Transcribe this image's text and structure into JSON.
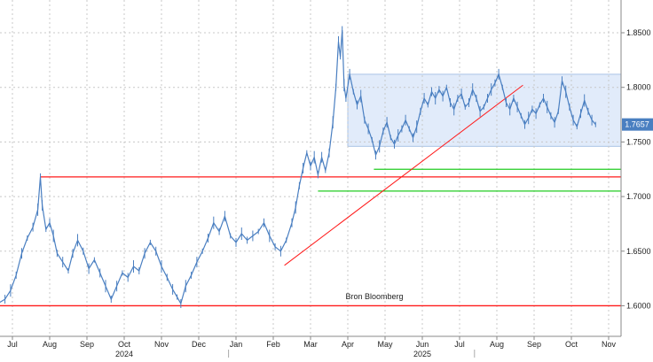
{
  "chart_data": {
    "type": "line",
    "source_label": "Bron Bloomberg",
    "last_value_label": "1.7657",
    "y_ticks": [
      {
        "value": 1.6,
        "label": "1.6000"
      },
      {
        "value": 1.65,
        "label": "1.6500"
      },
      {
        "value": 1.7,
        "label": "1.7000"
      },
      {
        "value": 1.75,
        "label": "1.7500"
      },
      {
        "value": 1.8,
        "label": "1.8000"
      },
      {
        "value": 1.85,
        "label": "1.8500"
      }
    ],
    "ylim": [
      1.572,
      1.88
    ],
    "x_ticks": [
      {
        "month": 0,
        "label": "Jul"
      },
      {
        "month": 1,
        "label": "Aug"
      },
      {
        "month": 2,
        "label": "Sep"
      },
      {
        "month": 3,
        "label": "Oct"
      },
      {
        "month": 4,
        "label": "Nov"
      },
      {
        "month": 5,
        "label": "Dec"
      },
      {
        "month": 6,
        "label": "Jan"
      },
      {
        "month": 7,
        "label": "Feb"
      },
      {
        "month": 8,
        "label": "Mar"
      },
      {
        "month": 9,
        "label": "Apr"
      },
      {
        "month": 10,
        "label": "May"
      },
      {
        "month": 11,
        "label": "Jun"
      },
      {
        "month": 12,
        "label": "Jul"
      },
      {
        "month": 13,
        "label": "Aug"
      },
      {
        "month": 14,
        "label": "Sep"
      },
      {
        "month": 15,
        "label": "Oct"
      },
      {
        "month": 16,
        "label": "Nov"
      }
    ],
    "year_labels": [
      {
        "month": 3,
        "label": "2024"
      },
      {
        "month": 11,
        "label": "2025"
      }
    ],
    "series": [
      {
        "color": "#4a7fc1",
        "points": [
          [
            -0.35,
            1.603
          ],
          [
            -0.2,
            1.606
          ],
          [
            -0.05,
            1.614
          ],
          [
            0.1,
            1.628
          ],
          [
            0.25,
            1.648
          ],
          [
            0.4,
            1.662
          ],
          [
            0.55,
            1.672
          ],
          [
            0.68,
            1.688
          ],
          [
            0.75,
            1.718
          ],
          [
            0.8,
            1.692
          ],
          [
            0.9,
            1.67
          ],
          [
            1.0,
            1.676
          ],
          [
            1.1,
            1.664
          ],
          [
            1.2,
            1.648
          ],
          [
            1.35,
            1.64
          ],
          [
            1.5,
            1.632
          ],
          [
            1.62,
            1.648
          ],
          [
            1.75,
            1.66
          ],
          [
            1.9,
            1.65
          ],
          [
            2.05,
            1.634
          ],
          [
            2.2,
            1.642
          ],
          [
            2.35,
            1.63
          ],
          [
            2.5,
            1.618
          ],
          [
            2.65,
            1.606
          ],
          [
            2.8,
            1.618
          ],
          [
            2.95,
            1.63
          ],
          [
            3.1,
            1.626
          ],
          [
            3.25,
            1.636
          ],
          [
            3.4,
            1.632
          ],
          [
            3.55,
            1.648
          ],
          [
            3.7,
            1.658
          ],
          [
            3.85,
            1.65
          ],
          [
            4.0,
            1.636
          ],
          [
            4.15,
            1.626
          ],
          [
            4.3,
            1.615
          ],
          [
            4.42,
            1.608
          ],
          [
            4.52,
            1.602
          ],
          [
            4.65,
            1.618
          ],
          [
            4.8,
            1.628
          ],
          [
            4.95,
            1.64
          ],
          [
            5.1,
            1.65
          ],
          [
            5.25,
            1.662
          ],
          [
            5.4,
            1.676
          ],
          [
            5.55,
            1.668
          ],
          [
            5.7,
            1.682
          ],
          [
            5.85,
            1.664
          ],
          [
            6.0,
            1.658
          ],
          [
            6.15,
            1.666
          ],
          [
            6.3,
            1.66
          ],
          [
            6.45,
            1.664
          ],
          [
            6.6,
            1.668
          ],
          [
            6.75,
            1.676
          ],
          [
            6.9,
            1.664
          ],
          [
            7.05,
            1.654
          ],
          [
            7.2,
            1.65
          ],
          [
            7.35,
            1.66
          ],
          [
            7.5,
            1.676
          ],
          [
            7.6,
            1.69
          ],
          [
            7.7,
            1.71
          ],
          [
            7.8,
            1.726
          ],
          [
            7.9,
            1.74
          ],
          [
            8.0,
            1.728
          ],
          [
            8.1,
            1.736
          ],
          [
            8.2,
            1.72
          ],
          [
            8.3,
            1.736
          ],
          [
            8.4,
            1.724
          ],
          [
            8.5,
            1.74
          ],
          [
            8.6,
            1.768
          ],
          [
            8.68,
            1.8
          ],
          [
            8.75,
            1.842
          ],
          [
            8.8,
            1.828
          ],
          [
            8.85,
            1.852
          ],
          [
            8.9,
            1.802
          ],
          [
            8.95,
            1.79
          ],
          [
            9.05,
            1.812
          ],
          [
            9.15,
            1.796
          ],
          [
            9.25,
            1.784
          ],
          [
            9.35,
            1.792
          ],
          [
            9.45,
            1.77
          ],
          [
            9.55,
            1.762
          ],
          [
            9.65,
            1.752
          ],
          [
            9.75,
            1.738
          ],
          [
            9.85,
            1.746
          ],
          [
            9.95,
            1.76
          ],
          [
            10.05,
            1.768
          ],
          [
            10.15,
            1.754
          ],
          [
            10.25,
            1.748
          ],
          [
            10.35,
            1.756
          ],
          [
            10.45,
            1.762
          ],
          [
            10.55,
            1.77
          ],
          [
            10.65,
            1.762
          ],
          [
            10.75,
            1.754
          ],
          [
            10.85,
            1.764
          ],
          [
            10.95,
            1.778
          ],
          [
            11.05,
            1.79
          ],
          [
            11.15,
            1.784
          ],
          [
            11.25,
            1.796
          ],
          [
            11.35,
            1.79
          ],
          [
            11.45,
            1.798
          ],
          [
            11.55,
            1.792
          ],
          [
            11.65,
            1.8
          ],
          [
            11.75,
            1.786
          ],
          [
            11.85,
            1.78
          ],
          [
            11.95,
            1.79
          ],
          [
            12.05,
            1.794
          ],
          [
            12.15,
            1.782
          ],
          [
            12.25,
            1.786
          ],
          [
            12.35,
            1.798
          ],
          [
            12.45,
            1.79
          ],
          [
            12.55,
            1.778
          ],
          [
            12.65,
            1.782
          ],
          [
            12.75,
            1.79
          ],
          [
            12.85,
            1.798
          ],
          [
            12.95,
            1.804
          ],
          [
            13.05,
            1.812
          ],
          [
            13.15,
            1.8
          ],
          [
            13.25,
            1.786
          ],
          [
            13.35,
            1.78
          ],
          [
            13.45,
            1.79
          ],
          [
            13.55,
            1.782
          ],
          [
            13.65,
            1.774
          ],
          [
            13.75,
            1.766
          ],
          [
            13.85,
            1.772
          ],
          [
            13.95,
            1.78
          ],
          [
            14.05,
            1.776
          ],
          [
            14.15,
            1.784
          ],
          [
            14.25,
            1.79
          ],
          [
            14.35,
            1.782
          ],
          [
            14.45,
            1.774
          ],
          [
            14.55,
            1.768
          ],
          [
            14.65,
            1.778
          ],
          [
            14.75,
            1.806
          ],
          [
            14.85,
            1.796
          ],
          [
            14.95,
            1.782
          ],
          [
            15.05,
            1.77
          ],
          [
            15.15,
            1.764
          ],
          [
            15.25,
            1.776
          ],
          [
            15.35,
            1.788
          ],
          [
            15.45,
            1.778
          ],
          [
            15.55,
            1.77
          ],
          [
            15.65,
            1.766
          ]
        ]
      }
    ],
    "horizontal_lines": [
      {
        "y": 1.6,
        "x_from": -0.45,
        "x_to": 16.7,
        "color": "#ff1a1a"
      },
      {
        "y": 1.718,
        "x_from": 0.75,
        "x_to": 16.7,
        "color": "#ff1a1a"
      },
      {
        "y": 1.705,
        "x_from": 8.2,
        "x_to": 16.7,
        "color": "#22cc22"
      },
      {
        "y": 1.725,
        "x_from": 9.7,
        "x_to": 16.7,
        "color": "#22cc22"
      }
    ],
    "trend_lines": [
      {
        "from": [
          7.3,
          1.637
        ],
        "to": [
          13.7,
          1.802
        ],
        "color": "#ff1a1a"
      }
    ],
    "range_box": {
      "x_from": 9.0,
      "x_to": 16.7,
      "y_low": 1.746,
      "y_high": 1.812,
      "fill": "#e1ebfa",
      "stroke": "#aac3e6"
    },
    "colors": {
      "grid": "#c8c8c8",
      "axis_text": "#222222",
      "value_badge": "#4a7fc1"
    }
  }
}
